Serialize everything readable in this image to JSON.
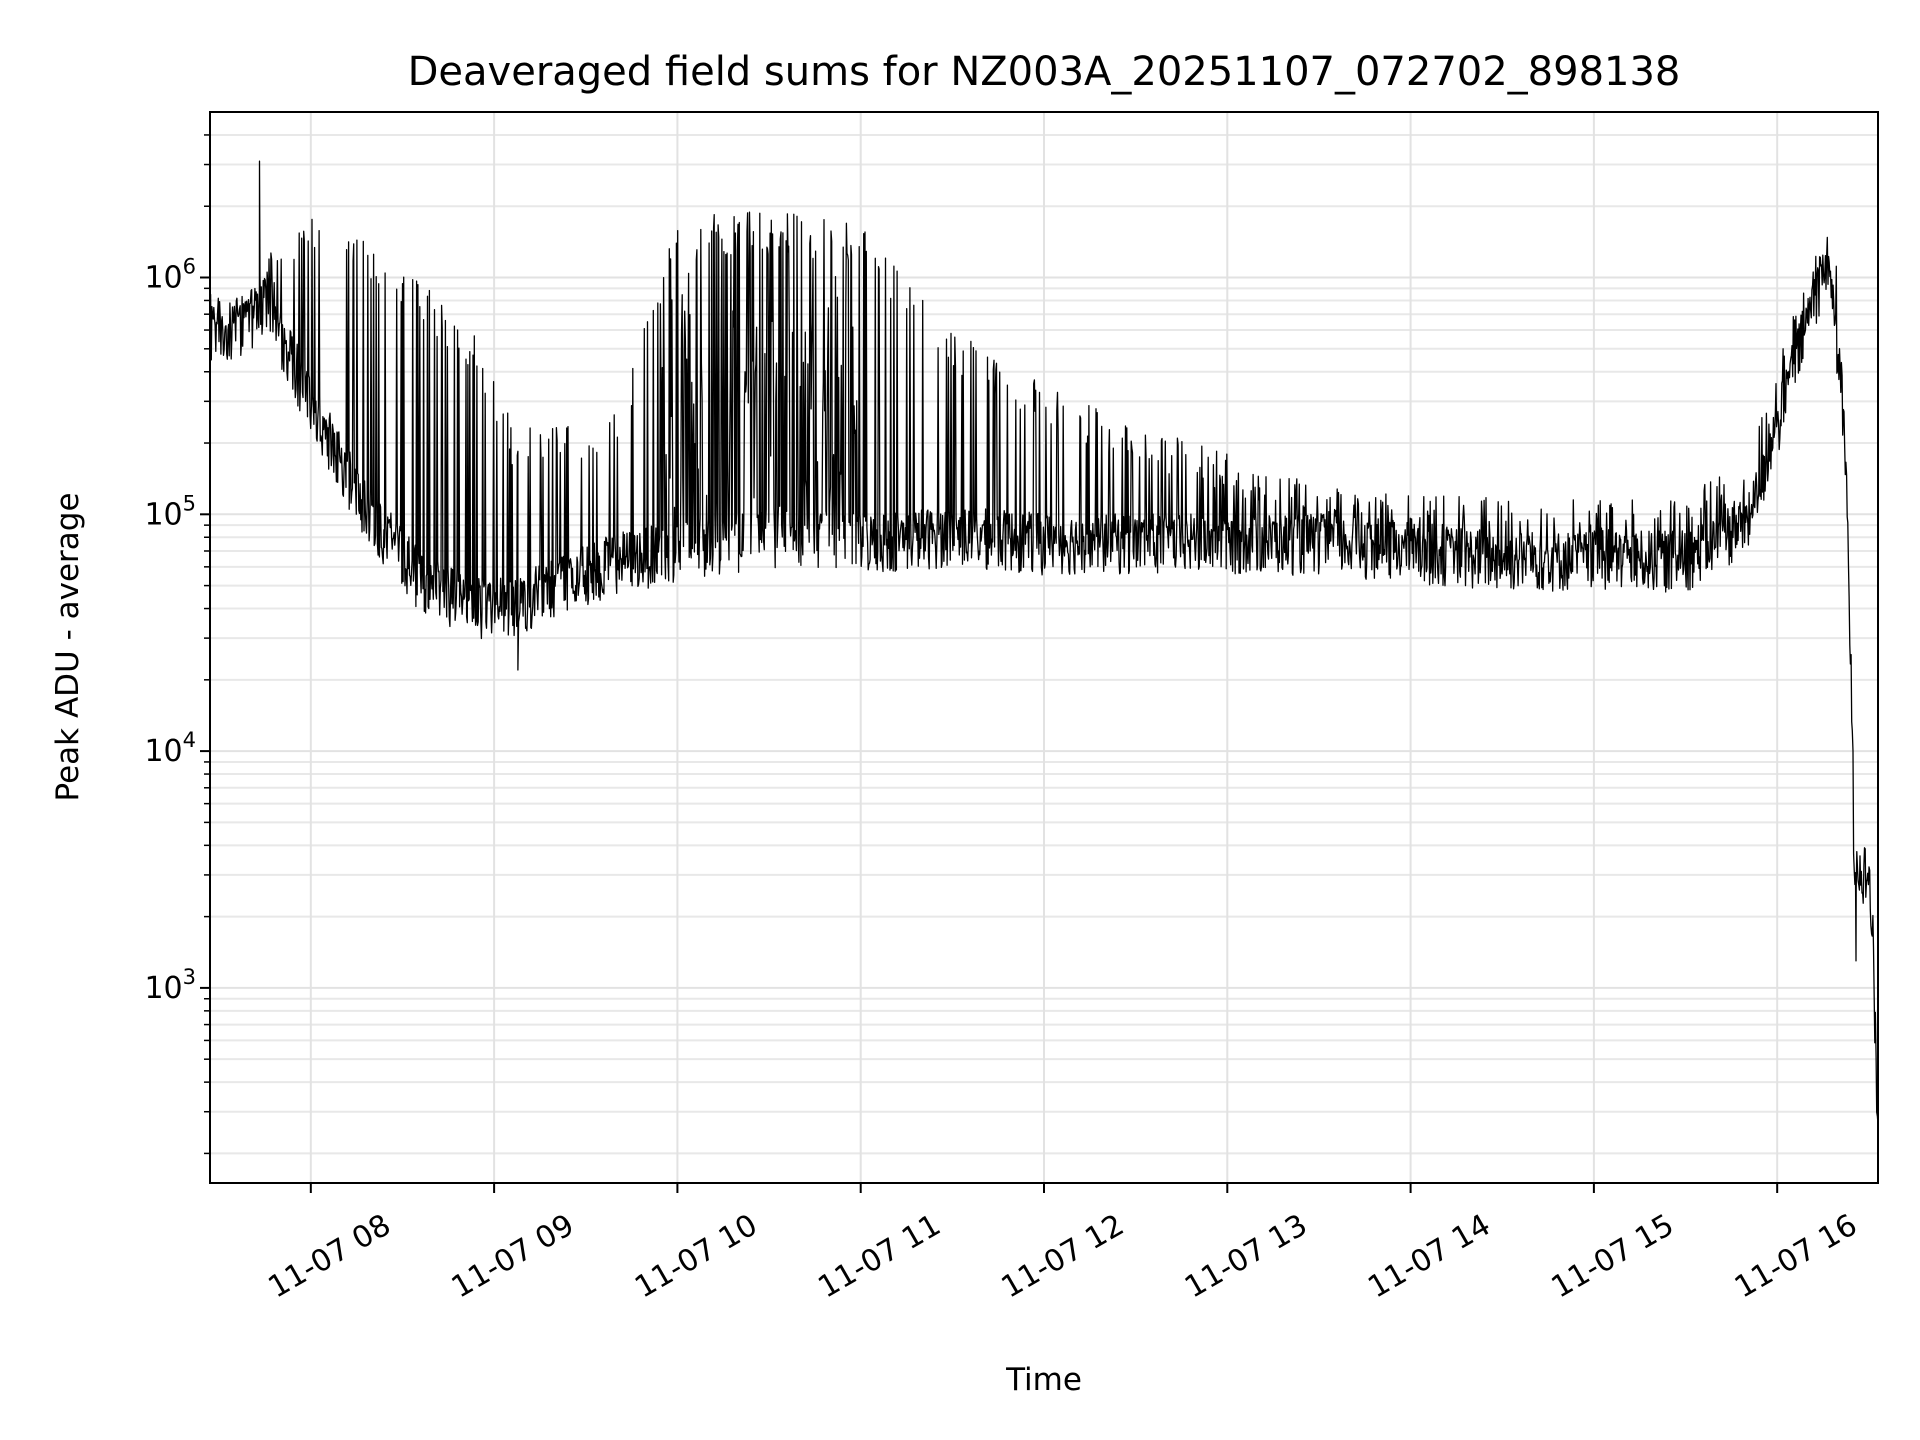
{
  "chart_data": {
    "type": "line",
    "title": "Deaveraged field sums for NZ003A_20251107_072702_898138",
    "xlabel": "Time",
    "ylabel": "Peak ADU - average",
    "yscale": "log",
    "grid": true,
    "color": "#000000",
    "x_range_hours": [
      7.45,
      16.55
    ],
    "ylim": [
      150,
      5000000
    ],
    "x_ticks": [
      {
        "value": 8,
        "label": "11-07 08"
      },
      {
        "value": 9,
        "label": "11-07 09"
      },
      {
        "value": 10,
        "label": "11-07 10"
      },
      {
        "value": 11,
        "label": "11-07 11"
      },
      {
        "value": 12,
        "label": "11-07 12"
      },
      {
        "value": 13,
        "label": "11-07 13"
      },
      {
        "value": 14,
        "label": "11-07 14"
      },
      {
        "value": 15,
        "label": "11-07 15"
      },
      {
        "value": 16,
        "label": "11-07 16"
      }
    ],
    "y_ticks": [
      {
        "value": 1000,
        "base": "10",
        "exp": "3"
      },
      {
        "value": 10000,
        "base": "10",
        "exp": "4"
      },
      {
        "value": 100000,
        "base": "10",
        "exp": "5"
      },
      {
        "value": 1000000,
        "base": "10",
        "exp": "6"
      }
    ],
    "series_description": "Dense noisy time series sampled every ~1 minute; values approximated from the visual envelope",
    "baseline_envelope": [
      {
        "t": 7.45,
        "low": 500000,
        "high": 800000
      },
      {
        "t": 7.65,
        "low": 550000,
        "high": 700000
      },
      {
        "t": 7.75,
        "low": 700000,
        "high": 1100000
      },
      {
        "t": 8.0,
        "low": 250000,
        "high": 1500000
      },
      {
        "t": 8.3,
        "low": 90000,
        "high": 1200000
      },
      {
        "t": 8.6,
        "low": 45000,
        "high": 800000
      },
      {
        "t": 8.9,
        "low": 35000,
        "high": 500000
      },
      {
        "t": 9.1,
        "low": 35000,
        "high": 200000
      },
      {
        "t": 9.4,
        "low": 45000,
        "high": 200000
      },
      {
        "t": 9.7,
        "low": 55000,
        "high": 250000
      },
      {
        "t": 10.0,
        "low": 60000,
        "high": 1500000
      },
      {
        "t": 10.5,
        "low": 70000,
        "high": 1600000
      },
      {
        "t": 11.0,
        "low": 65000,
        "high": 1400000
      },
      {
        "t": 11.5,
        "low": 70000,
        "high": 500000
      },
      {
        "t": 12.0,
        "low": 65000,
        "high": 300000
      },
      {
        "t": 12.5,
        "low": 65000,
        "high": 200000
      },
      {
        "t": 13.0,
        "low": 65000,
        "high": 150000
      },
      {
        "t": 13.5,
        "low": 65000,
        "high": 110000
      },
      {
        "t": 14.0,
        "low": 60000,
        "high": 100000
      },
      {
        "t": 14.5,
        "low": 55000,
        "high": 100000
      },
      {
        "t": 15.0,
        "low": 55000,
        "high": 100000
      },
      {
        "t": 15.5,
        "low": 55000,
        "high": 100000
      },
      {
        "t": 15.85,
        "low": 80000,
        "high": 150000
      },
      {
        "t": 16.0,
        "low": 200000,
        "high": 350000
      },
      {
        "t": 16.2,
        "low": 700000,
        "high": 1100000
      },
      {
        "t": 16.28,
        "low": 1000000,
        "high": 1200000
      },
      {
        "t": 16.35,
        "low": 300000,
        "high": 800000
      },
      {
        "t": 16.38,
        "low": 100000,
        "high": 200000
      },
      {
        "t": 16.41,
        "low": 10000,
        "high": 50000
      },
      {
        "t": 16.42,
        "low": 3000,
        "high": 4500
      },
      {
        "t": 16.5,
        "low": 2500,
        "high": 4000
      },
      {
        "t": 16.52,
        "low": 1500,
        "high": 2500
      },
      {
        "t": 16.55,
        "low": 200,
        "high": 900
      }
    ],
    "notable_points": [
      {
        "t": 7.72,
        "value": 3100000
      },
      {
        "t": 9.13,
        "value": 22000
      },
      {
        "t": 16.43,
        "value": 1300
      }
    ]
  }
}
